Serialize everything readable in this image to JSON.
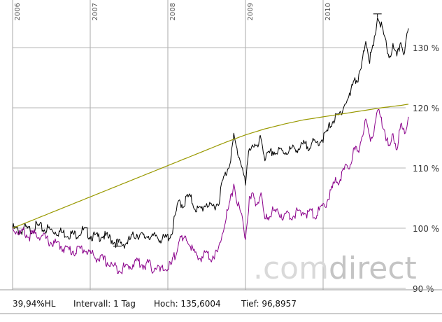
{
  "chart_data": {
    "type": "line",
    "x_ticks": [
      "2006",
      "2007",
      "2008",
      "2009",
      "2010"
    ],
    "y_ticks": [
      {
        "value": 90,
        "label": "90 %"
      },
      {
        "value": 100,
        "label": "100 %"
      },
      {
        "value": 110,
        "label": "110 %"
      },
      {
        "value": 120,
        "label": "120 %"
      },
      {
        "value": 130,
        "label": "130 %"
      }
    ],
    "ylim": [
      89,
      137
    ],
    "grid": true,
    "series": [
      {
        "color": "#000000",
        "x": [
          2006.0,
          2006.05,
          2006.1,
          2006.15,
          2006.2,
          2006.25,
          2006.3,
          2006.35,
          2006.4,
          2006.45,
          2006.5,
          2006.55,
          2006.6,
          2006.65,
          2006.7,
          2006.75,
          2006.8,
          2006.85,
          2006.9,
          2006.95,
          2007.0,
          2007.05,
          2007.1,
          2007.15,
          2007.2,
          2007.25,
          2007.3,
          2007.35,
          2007.4,
          2007.45,
          2007.5,
          2007.55,
          2007.6,
          2007.65,
          2007.7,
          2007.75,
          2007.8,
          2007.85,
          2007.9,
          2007.95,
          2008.0,
          2008.05,
          2008.1,
          2008.15,
          2008.2,
          2008.25,
          2008.3,
          2008.35,
          2008.4,
          2008.45,
          2008.5,
          2008.55,
          2008.6,
          2008.65,
          2008.7,
          2008.75,
          2008.8,
          2008.85,
          2008.9,
          2008.95,
          2009.0,
          2009.05,
          2009.1,
          2009.15,
          2009.2,
          2009.25,
          2009.3,
          2009.35,
          2009.4,
          2009.45,
          2009.5,
          2009.55,
          2009.6,
          2009.65,
          2009.7,
          2009.75,
          2009.8,
          2009.85,
          2009.9,
          2009.95,
          2010.0,
          2010.05,
          2010.1,
          2010.15,
          2010.2,
          2010.25,
          2010.3,
          2010.35,
          2010.4,
          2010.45,
          2010.5,
          2010.55,
          2010.6,
          2010.65,
          2010.7,
          2010.75,
          2010.8,
          2010.85,
          2010.9,
          2010.95,
          2011.0,
          2011.05,
          2011.1
        ],
        "values": [
          100.0,
          99.7,
          99.4,
          100.1,
          99.6,
          99.9,
          100.3,
          100.2,
          99.8,
          99.9,
          99.6,
          99.5,
          99.4,
          99.2,
          99.1,
          99.0,
          98.9,
          99.2,
          99.6,
          99.4,
          98.8,
          98.6,
          98.4,
          99.0,
          98.5,
          98.3,
          97.9,
          97.5,
          97.3,
          97.5,
          97.9,
          98.6,
          99.1,
          98.7,
          98.4,
          99.0,
          98.2,
          98.8,
          98.3,
          98.1,
          98.5,
          99.2,
          102.3,
          104.5,
          103.8,
          105.2,
          104.8,
          103.5,
          102.9,
          103.4,
          104.3,
          103.2,
          103.8,
          104.2,
          107.5,
          109.2,
          111.2,
          115.0,
          112.5,
          110.8,
          107.0,
          113.5,
          114.0,
          113.0,
          115.0,
          111.8,
          112.0,
          112.8,
          112.5,
          112.8,
          112.7,
          112.9,
          113.0,
          113.4,
          113.2,
          113.8,
          113.6,
          114.2,
          113.9,
          114.5,
          115.0,
          115.8,
          117.5,
          118.2,
          118.5,
          120.0,
          121.0,
          122.0,
          125.3,
          124.3,
          127.0,
          131.5,
          128.0,
          130.0,
          135.2,
          133.5,
          131.0,
          128.5,
          130.0,
          128.2,
          131.2,
          129.0,
          133.2
        ]
      },
      {
        "color": "#8b008b",
        "x": [
          2006.0,
          2006.05,
          2006.1,
          2006.15,
          2006.2,
          2006.25,
          2006.3,
          2006.35,
          2006.4,
          2006.45,
          2006.5,
          2006.55,
          2006.6,
          2006.65,
          2006.7,
          2006.75,
          2006.8,
          2006.85,
          2006.9,
          2006.95,
          2007.0,
          2007.05,
          2007.1,
          2007.15,
          2007.2,
          2007.25,
          2007.3,
          2007.35,
          2007.4,
          2007.45,
          2007.5,
          2007.55,
          2007.6,
          2007.65,
          2007.7,
          2007.75,
          2007.8,
          2007.85,
          2007.9,
          2007.95,
          2008.0,
          2008.05,
          2008.1,
          2008.15,
          2008.2,
          2008.25,
          2008.3,
          2008.35,
          2008.4,
          2008.45,
          2008.5,
          2008.55,
          2008.6,
          2008.65,
          2008.7,
          2008.75,
          2008.8,
          2008.85,
          2008.9,
          2008.95,
          2009.0,
          2009.05,
          2009.1,
          2009.15,
          2009.2,
          2009.25,
          2009.3,
          2009.35,
          2009.4,
          2009.45,
          2009.5,
          2009.55,
          2009.6,
          2009.65,
          2009.7,
          2009.75,
          2009.8,
          2009.85,
          2009.9,
          2009.95,
          2010.0,
          2010.05,
          2010.1,
          2010.15,
          2010.2,
          2010.25,
          2010.3,
          2010.35,
          2010.4,
          2010.45,
          2010.5,
          2010.55,
          2010.6,
          2010.65,
          2010.7,
          2010.75,
          2010.8,
          2010.85,
          2010.9,
          2010.95,
          2011.0,
          2011.05,
          2011.1
        ],
        "values": [
          100.0,
          99.6,
          99.1,
          99.4,
          98.6,
          98.9,
          99.0,
          98.8,
          98.5,
          98.0,
          97.6,
          97.4,
          97.2,
          96.8,
          96.5,
          96.3,
          96.2,
          96.4,
          96.6,
          96.3,
          95.8,
          95.4,
          95.0,
          94.8,
          94.5,
          94.0,
          93.6,
          93.4,
          93.2,
          93.5,
          93.7,
          94.0,
          94.6,
          94.1,
          93.8,
          94.2,
          93.2,
          93.8,
          92.8,
          93.2,
          93.5,
          93.9,
          96.0,
          98.5,
          97.6,
          98.2,
          97.0,
          95.5,
          95.0,
          95.4,
          96.0,
          95.2,
          95.6,
          96.0,
          99.5,
          102.0,
          104.0,
          107.5,
          104.0,
          102.0,
          98.5,
          104.5,
          105.2,
          104.0,
          105.8,
          101.2,
          102.0,
          103.0,
          102.5,
          102.5,
          101.8,
          102.3,
          102.0,
          102.6,
          102.2,
          102.8,
          102.4,
          102.6,
          102.2,
          102.8,
          103.5,
          104.5,
          106.0,
          107.5,
          108.0,
          109.0,
          110.0,
          110.5,
          113.0,
          112.5,
          115.5,
          118.0,
          115.0,
          116.2,
          119.5,
          118.0,
          116.0,
          113.0,
          115.5,
          113.5,
          117.0,
          115.5,
          118.5
        ]
      },
      {
        "color": "#999900",
        "x": [
          2006.0,
          2006.25,
          2006.5,
          2006.75,
          2007.0,
          2007.25,
          2007.5,
          2007.75,
          2008.0,
          2008.25,
          2008.5,
          2008.75,
          2009.0,
          2009.25,
          2009.5,
          2009.75,
          2010.0,
          2010.25,
          2010.5,
          2010.75,
          2011.0,
          2011.1
        ],
        "values": [
          100.0,
          101.3,
          102.6,
          103.9,
          105.2,
          106.5,
          107.8,
          109.1,
          110.4,
          111.7,
          113.0,
          114.3,
          115.5,
          116.5,
          117.3,
          118.0,
          118.5,
          119.0,
          119.5,
          120.0,
          120.4,
          120.6
        ]
      }
    ],
    "annotations": [
      {
        "type": "low-marker",
        "x": 2007.35,
        "y": 97.0
      },
      {
        "type": "high-marker",
        "x": 2010.7,
        "y": 135.6
      }
    ]
  },
  "footer": {
    "change": "39,94%HL",
    "interval": "Intervall: 1 Tag",
    "high": "Hoch: 135,6004",
    "low": "Tief: 96,8957"
  },
  "watermark": {
    "part1": ".com",
    "part2": "direct"
  }
}
